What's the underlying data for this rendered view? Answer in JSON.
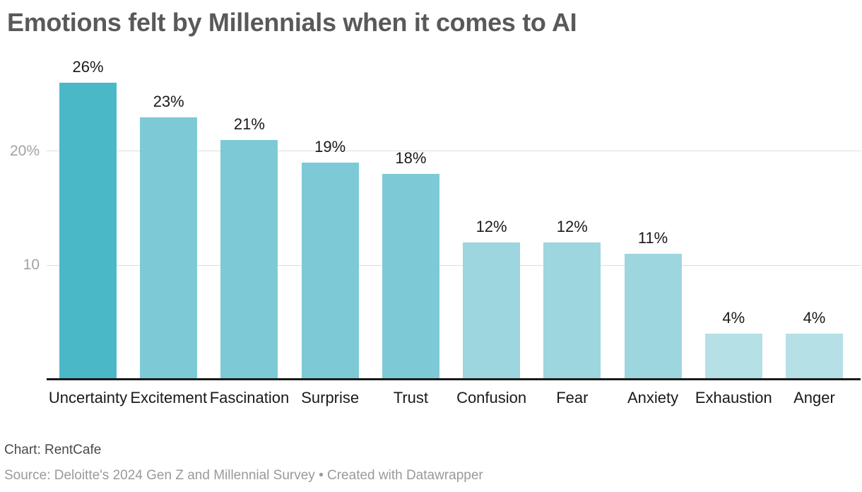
{
  "title": "Emotions felt by Millennials when it comes to AI",
  "chart_data": {
    "type": "bar",
    "title": "Emotions felt by Millennials when it comes to AI",
    "categories": [
      "Uncertainty",
      "Excitement",
      "Fascination",
      "Surprise",
      "Trust",
      "Confusion",
      "Fear",
      "Anxiety",
      "Exhaustion",
      "Anger"
    ],
    "values": [
      26,
      23,
      21,
      19,
      18,
      12,
      12,
      11,
      4,
      4
    ],
    "value_labels": [
      "26%",
      "23%",
      "21%",
      "19%",
      "18%",
      "12%",
      "12%",
      "11%",
      "4%",
      "4%"
    ],
    "bar_colors": [
      "#4bb8c8",
      "#7dcad6",
      "#7dcad6",
      "#7dcad6",
      "#7dcad6",
      "#9dd6de",
      "#9dd6de",
      "#9dd6de",
      "#b4e0e6",
      "#b4e0e6"
    ],
    "xlabel": "",
    "ylabel": "",
    "ylim": [
      0,
      28
    ],
    "yticks": [
      {
        "value": 10,
        "label": "10"
      },
      {
        "value": 20,
        "label": "20%"
      }
    ],
    "grid": "horizontal",
    "legend": "none"
  },
  "footer": {
    "credit": "Chart: RentCafe",
    "source": "Source: Deloitte's 2024 Gen Z and Millennial Survey • Created with Datawrapper"
  },
  "colors": {
    "background": "#ffffff",
    "highlight_bar": "#4bb8c8",
    "bar_tier2": "#7dcad6",
    "bar_tier3": "#9dd6de",
    "bar_tier4": "#b4e0e6",
    "title_text": "#595959",
    "value_label_text": "#1a1a1a",
    "category_label_text": "#1a1a1a",
    "tick_label_text": "#a3a3a3",
    "gridline": "#dddddd",
    "axis_line": "#1a1a1a",
    "credit_text": "#4a4a4a",
    "source_text": "#9a9a9a"
  }
}
